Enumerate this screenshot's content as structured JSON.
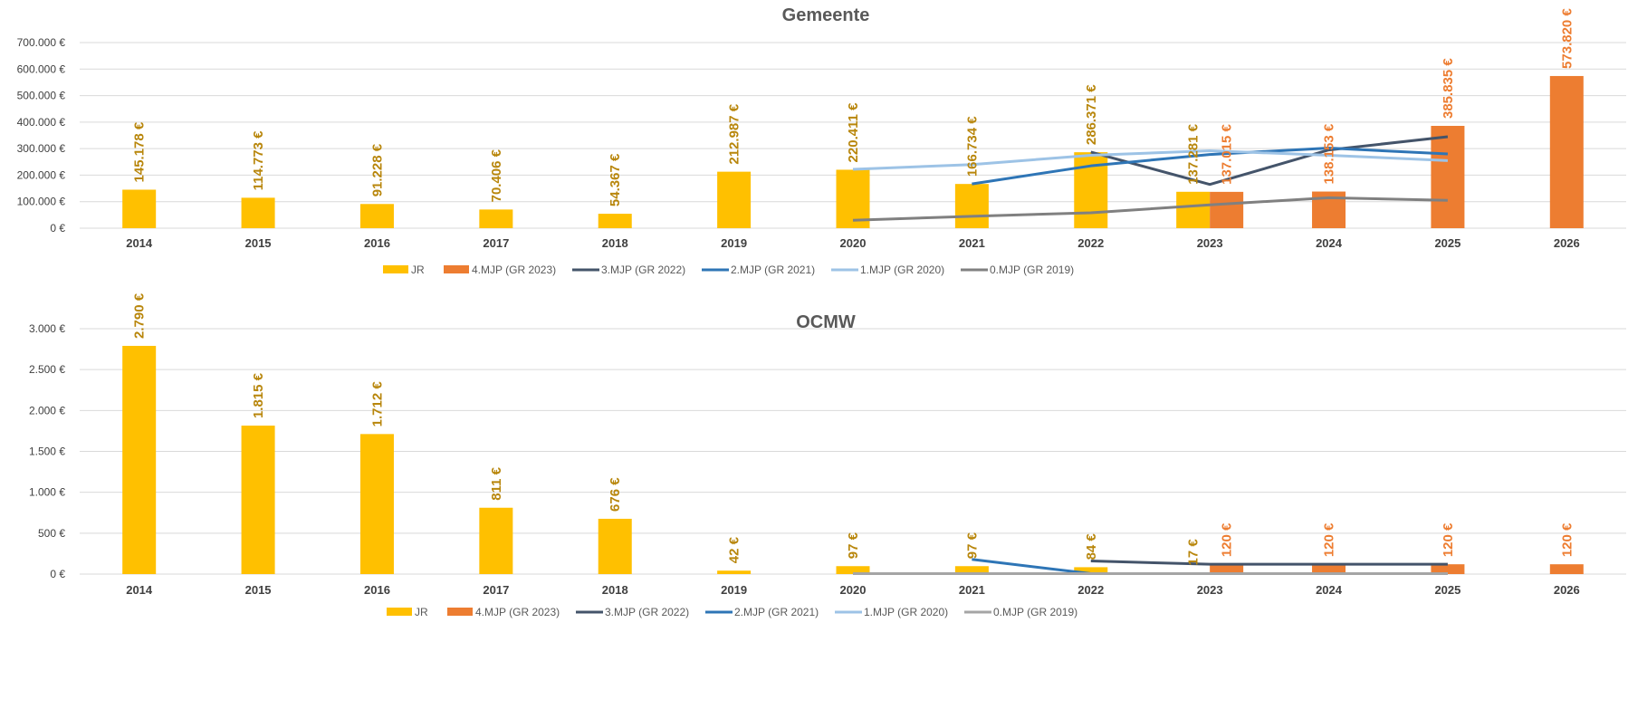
{
  "colors": {
    "JR": "#FFC000",
    "JR_label": "#B8860B",
    "MJP4": "#ED7D31",
    "MJP3": "#44546A",
    "MJP2": "#2E75B6",
    "MJP1": "#9DC3E6",
    "MJP0_gem": "#808080",
    "MJP0_ocmw": "#A5A5A5",
    "grid": "#D9D9D9"
  },
  "chart_data": [
    {
      "type": "bar",
      "title": "Gemeente",
      "categories": [
        "2014",
        "2015",
        "2016",
        "2017",
        "2018",
        "2019",
        "2020",
        "2021",
        "2022",
        "2023",
        "2024",
        "2025",
        "2026"
      ],
      "ylim": [
        0,
        700000
      ],
      "yticks": [
        0,
        100000,
        200000,
        300000,
        400000,
        500000,
        600000,
        700000
      ],
      "ytick_labels": [
        "0 €",
        "100.000 €",
        "200.000 €",
        "300.000 €",
        "400.000 €",
        "500.000 €",
        "600.000 €",
        "700.000 €"
      ],
      "grid": true,
      "legend_position": "bottom",
      "series": [
        {
          "name": "JR",
          "kind": "bar",
          "color_key": "JR",
          "label_color_key": "JR_label",
          "values": [
            145178,
            114773,
            91228,
            70406,
            54367,
            212987,
            220411,
            166734,
            286371,
            137281,
            null,
            null,
            null
          ],
          "labels": [
            "145.178 €",
            "114.773 €",
            "91.228 €",
            "70.406 €",
            "54.367 €",
            "212.987 €",
            "220.411 €",
            "166.734 €",
            "286.371 €",
            "137.281 €",
            null,
            null,
            null
          ]
        },
        {
          "name": "4.MJP (GR 2023)",
          "kind": "bar",
          "color_key": "MJP4",
          "label_color_key": "MJP4",
          "values": [
            null,
            null,
            null,
            null,
            null,
            null,
            null,
            null,
            null,
            137015,
            138153,
            385835,
            573820
          ],
          "labels": [
            null,
            null,
            null,
            null,
            null,
            null,
            null,
            null,
            null,
            "137.015 €",
            "138.153 €",
            "385.835 €",
            "573.820 €"
          ]
        },
        {
          "name": "3.MJP (GR 2022)",
          "kind": "line",
          "color_key": "MJP3",
          "values": [
            null,
            null,
            null,
            null,
            null,
            null,
            null,
            null,
            287000,
            165000,
            295000,
            345000,
            null
          ]
        },
        {
          "name": "2.MJP (GR 2021)",
          "kind": "line",
          "color_key": "MJP2",
          "values": [
            null,
            null,
            null,
            null,
            null,
            null,
            null,
            167000,
            235000,
            278000,
            302000,
            280000,
            null
          ]
        },
        {
          "name": "1.MJP (GR 2020)",
          "kind": "line",
          "color_key": "MJP1",
          "values": [
            null,
            null,
            null,
            null,
            null,
            null,
            222000,
            240000,
            275000,
            292000,
            275000,
            255000,
            null
          ]
        },
        {
          "name": "0.MJP (GR 2019)",
          "kind": "line",
          "color_key": "MJP0_gem",
          "values": [
            null,
            null,
            null,
            null,
            null,
            null,
            30000,
            45000,
            58000,
            88000,
            115000,
            105000,
            null
          ]
        }
      ]
    },
    {
      "type": "bar",
      "title": "OCMW",
      "categories": [
        "2014",
        "2015",
        "2016",
        "2017",
        "2018",
        "2019",
        "2020",
        "2021",
        "2022",
        "2023",
        "2024",
        "2025",
        "2026"
      ],
      "ylim": [
        0,
        3000
      ],
      "yticks": [
        0,
        500,
        1000,
        1500,
        2000,
        2500,
        3000
      ],
      "ytick_labels": [
        "0 €",
        "500 €",
        "1.000 €",
        "1.500 €",
        "2.000 €",
        "2.500 €",
        "3.000 €"
      ],
      "grid": true,
      "legend_position": "bottom",
      "series": [
        {
          "name": "JR",
          "kind": "bar",
          "color_key": "JR",
          "label_color_key": "JR_label",
          "values": [
            2790,
            1815,
            1712,
            811,
            676,
            42,
            97,
            97,
            84,
            17,
            null,
            null,
            null
          ],
          "labels": [
            "2.790 €",
            "1.815 €",
            "1.712 €",
            "811 €",
            "676 €",
            "42 €",
            "97 €",
            "97 €",
            "84 €",
            "17 €",
            null,
            null,
            null
          ]
        },
        {
          "name": "4.MJP (GR 2023)",
          "kind": "bar",
          "color_key": "MJP4",
          "label_color_key": "MJP4",
          "values": [
            null,
            null,
            null,
            null,
            null,
            null,
            null,
            null,
            null,
            120,
            120,
            120,
            120
          ],
          "labels": [
            null,
            null,
            null,
            null,
            null,
            null,
            null,
            null,
            null,
            "120 €",
            "120 €",
            "120 €",
            "120 €"
          ]
        },
        {
          "name": "3.MJP (GR 2022)",
          "kind": "line",
          "color_key": "MJP3",
          "values": [
            null,
            null,
            null,
            null,
            null,
            null,
            null,
            null,
            160,
            120,
            120,
            120,
            null
          ]
        },
        {
          "name": "2.MJP (GR 2021)",
          "kind": "line",
          "color_key": "MJP2",
          "values": [
            null,
            null,
            null,
            null,
            null,
            null,
            null,
            180,
            5,
            null,
            null,
            null,
            null
          ]
        },
        {
          "name": "1.MJP (GR 2020)",
          "kind": "line",
          "color_key": "MJP1",
          "values": [
            null,
            null,
            null,
            null,
            null,
            null,
            5,
            5,
            5,
            5,
            5,
            5,
            null
          ]
        },
        {
          "name": "0.MJP (GR 2019)",
          "kind": "line",
          "color_key": "MJP0_ocmw",
          "values": [
            null,
            null,
            null,
            null,
            null,
            null,
            5,
            5,
            5,
            5,
            5,
            5,
            null
          ]
        }
      ]
    }
  ]
}
